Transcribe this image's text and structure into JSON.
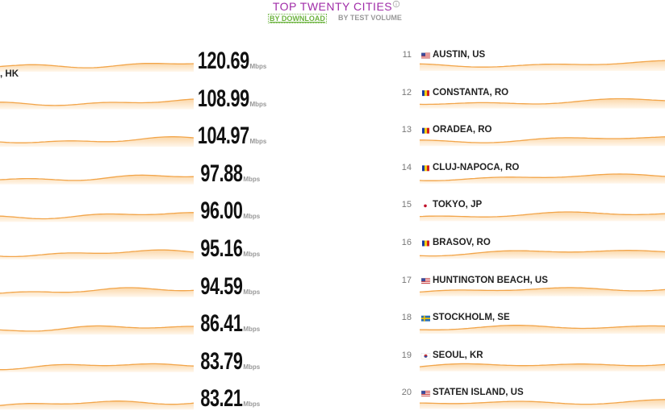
{
  "header": {
    "title": "TOP TWENTY CITIES",
    "tabs": [
      "BY DOWNLOAD",
      "BY TEST VOLUME"
    ]
  },
  "unit": "Mbps",
  "left_list": {
    "rows": [
      {
        "speed": "120.69"
      },
      {
        "label": ", HK",
        "speed": "108.99"
      },
      {
        "speed": "104.97"
      },
      {
        "speed": "97.88"
      },
      {
        "speed": "96.00"
      },
      {
        "speed": "95.16"
      },
      {
        "speed": "94.59"
      },
      {
        "speed": "86.41"
      },
      {
        "speed": "83.79"
      },
      {
        "speed": "83.21"
      }
    ]
  },
  "right_list": {
    "rows": [
      {
        "rank": 11,
        "name": "AUSTIN, US"
      },
      {
        "rank": 12,
        "name": "CONSTANTA, RO"
      },
      {
        "rank": 13,
        "name": "ORADEA, RO"
      },
      {
        "rank": 14,
        "name": "CLUJ-NAPOCA, RO"
      },
      {
        "rank": 15,
        "name": "TOKYO, JP"
      },
      {
        "rank": 16,
        "name": "BRASOV, RO"
      },
      {
        "rank": 17,
        "name": "HUNTINGTON BEACH, US"
      },
      {
        "rank": 18,
        "name": "STOCKHOLM, SE"
      },
      {
        "rank": 19,
        "name": "SEOUL, KR"
      },
      {
        "rank": 20,
        "name": "STATEN ISLAND, US"
      }
    ]
  }
}
